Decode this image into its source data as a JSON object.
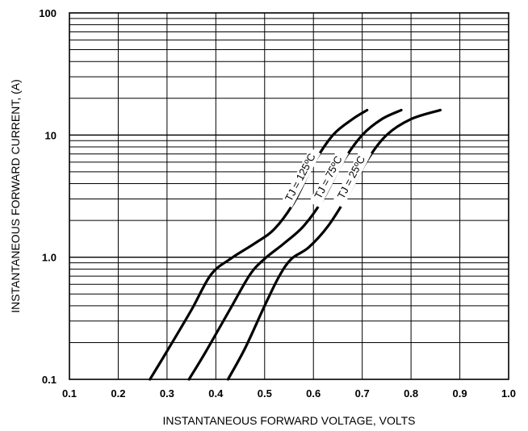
{
  "chart_data": {
    "type": "line",
    "title": "",
    "xlabel": "INSTANTANEOUS FORWARD VOLTAGE, VOLTS",
    "ylabel": "INSTANTANEOUS  FORWARD CURRENT, (A)",
    "xlim": [
      0.1,
      1.0
    ],
    "ylim": [
      0.1,
      100
    ],
    "yscale": "log",
    "grid": true,
    "legend": "none",
    "x_ticks": [
      "0.1",
      "0.2",
      "0.3",
      "0.4",
      "0.5",
      "0.6",
      "0.7",
      "0.8",
      "0.9",
      "1.0"
    ],
    "y_ticks": [
      "0.1",
      "1.0",
      "10",
      "100"
    ],
    "line_color": "#000000",
    "series": [
      {
        "name": "TJ = 125ºC",
        "x": [
          0.265,
          0.3,
          0.35,
          0.39,
          0.43,
          0.48,
          0.52,
          0.56,
          0.6,
          0.64,
          0.68,
          0.71
        ],
        "y": [
          0.1,
          0.17,
          0.37,
          0.72,
          0.97,
          1.3,
          1.7,
          2.8,
          5.8,
          10.0,
          13.5,
          16.0
        ]
      },
      {
        "name": "TJ = 75ºC",
        "x": [
          0.345,
          0.38,
          0.43,
          0.47,
          0.5,
          0.54,
          0.58,
          0.62,
          0.66,
          0.7,
          0.74,
          0.78
        ],
        "y": [
          0.1,
          0.17,
          0.38,
          0.72,
          0.97,
          1.3,
          1.8,
          3.0,
          6.0,
          10.0,
          13.5,
          16.0
        ]
      },
      {
        "name": "TJ = 25ºC",
        "x": [
          0.425,
          0.46,
          0.5,
          0.53,
          0.555,
          0.59,
          0.63,
          0.67,
          0.71,
          0.75,
          0.8,
          0.86
        ],
        "y": [
          0.1,
          0.18,
          0.4,
          0.7,
          0.97,
          1.2,
          1.8,
          3.2,
          6.2,
          10.0,
          13.5,
          16.0
        ]
      }
    ]
  }
}
